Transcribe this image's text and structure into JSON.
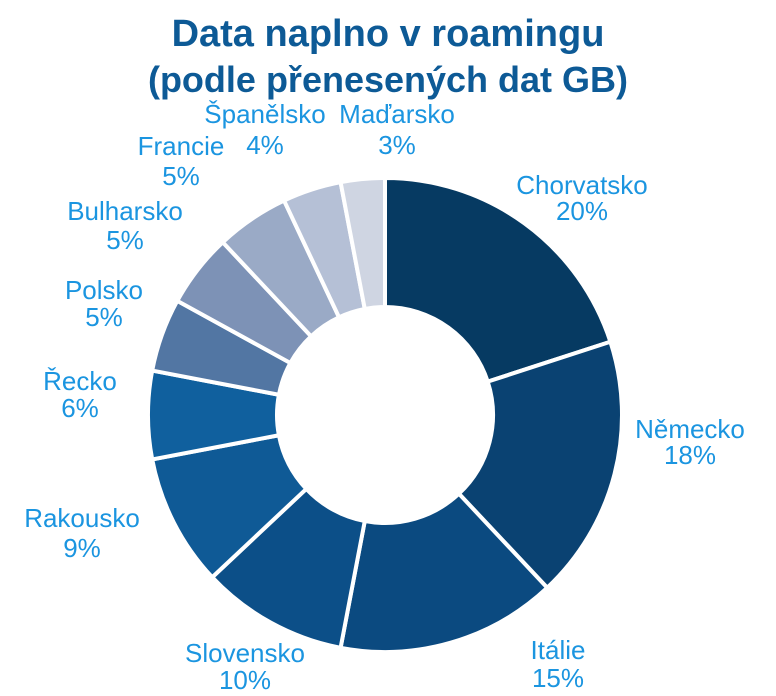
{
  "chart_data": {
    "type": "pie",
    "title": "Data naplno v roamingu",
    "subtitle": "(podle přenesených dat GB)",
    "slices": [
      {
        "label": "Chorvatsko",
        "percent_label": "20%",
        "value": 20,
        "color": "#063a62"
      },
      {
        "label": "Německo",
        "percent_label": "18%",
        "value": 18,
        "color": "#0a4272"
      },
      {
        "label": "Itálie",
        "percent_label": "15%",
        "value": 15,
        "color": "#0b4a80"
      },
      {
        "label": "Slovensko",
        "percent_label": "10%",
        "value": 10,
        "color": "#0c4f88"
      },
      {
        "label": "Rakousko",
        "percent_label": "9%",
        "value": 9,
        "color": "#0f5a96"
      },
      {
        "label": "Řecko",
        "percent_label": "6%",
        "value": 6,
        "color": "#10609e"
      },
      {
        "label": "Polsko",
        "percent_label": "5%",
        "value": 5,
        "color": "#5276a3"
      },
      {
        "label": "Bulharsko",
        "percent_label": "5%",
        "value": 5,
        "color": "#7d92b6"
      },
      {
        "label": "Francie",
        "percent_label": "5%",
        "value": 5,
        "color": "#9aaac6"
      },
      {
        "label": "Španělsko",
        "percent_label": "4%",
        "value": 4,
        "color": "#b5c0d6"
      },
      {
        "label": "Maďarsko",
        "percent_label": "3%",
        "value": 3,
        "color": "#cfd5e2"
      }
    ]
  }
}
